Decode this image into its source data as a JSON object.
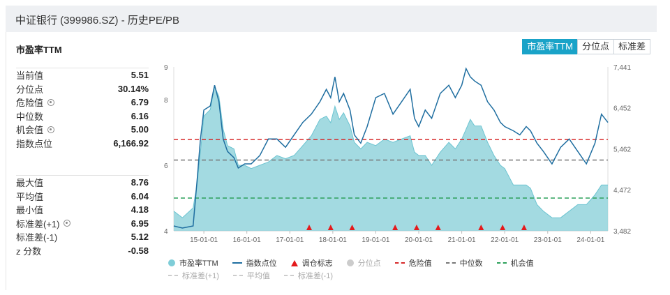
{
  "header": {
    "title": "中证银行 (399986.SZ) - 历史PE/PB"
  },
  "section": {
    "title": "市盈率TTM"
  },
  "tabs": [
    {
      "label": "市盈率TTM",
      "active": true
    },
    {
      "label": "分位点",
      "active": false
    },
    {
      "label": "标准差",
      "active": false
    }
  ],
  "stats_top": [
    {
      "label": "当前值",
      "value": "5.51",
      "gear": false
    },
    {
      "label": "分位点",
      "value": "30.14%",
      "gear": false
    },
    {
      "label": "危险值",
      "value": "6.79",
      "gear": true
    },
    {
      "label": "中位数",
      "value": "6.16",
      "gear": false
    },
    {
      "label": "机会值",
      "value": "5.00",
      "gear": true
    },
    {
      "label": "指数点位",
      "value": "6,166.92",
      "gear": false
    }
  ],
  "stats_bottom": [
    {
      "label": "最大值",
      "value": "8.76",
      "gear": false
    },
    {
      "label": "平均值",
      "value": "6.04",
      "gear": false
    },
    {
      "label": "最小值",
      "value": "4.18",
      "gear": false
    },
    {
      "label": "标准差(+1)",
      "value": "6.95",
      "gear": true
    },
    {
      "label": "标准差(-1)",
      "value": "5.12",
      "gear": false
    },
    {
      "label": "z 分数",
      "value": "-0.58",
      "gear": false
    }
  ],
  "legend": {
    "row1": [
      {
        "label": "市盈率TTM",
        "symbol": "dot",
        "color": "#7fcdd8",
        "muted": false
      },
      {
        "label": "指数点位",
        "symbol": "line",
        "color": "#1f6ea0",
        "muted": false
      },
      {
        "label": "调仓标志",
        "symbol": "triangle",
        "color": "#e41a1c",
        "muted": false
      },
      {
        "label": "分位点",
        "symbol": "dot",
        "color": "#cccccc",
        "muted": true
      },
      {
        "label": "危险值",
        "symbol": "dash",
        "color": "#d62728",
        "muted": false
      },
      {
        "label": "中位数",
        "symbol": "dash",
        "color": "#777777",
        "muted": false
      },
      {
        "label": "机会值",
        "symbol": "dash",
        "color": "#2ca05a",
        "muted": false
      }
    ],
    "row2": [
      {
        "label": "标准差(+1)",
        "symbol": "dash",
        "color": "#cccccc",
        "muted": true
      },
      {
        "label": "平均值",
        "symbol": "dash",
        "color": "#cccccc",
        "muted": true
      },
      {
        "label": "标准差(-1)",
        "symbol": "dash",
        "color": "#cccccc",
        "muted": true
      }
    ]
  },
  "chart_data": {
    "type": "area",
    "x_ticks": [
      "15-01-01",
      "16-01-01",
      "17-01-01",
      "18-01-01",
      "19-01-01",
      "20-01-01",
      "21-01-01",
      "22-01-01",
      "23-01-01",
      "24-01-01"
    ],
    "x_range": [
      2014.3,
      2024.4
    ],
    "y_left_ticks": [
      4,
      6,
      8,
      9
    ],
    "y_left_range": [
      4,
      9
    ],
    "y_right_ticks": [
      "3,482",
      "4,472",
      "5,462",
      "6,452",
      "7,441"
    ],
    "y_right_range": [
      3482,
      7441
    ],
    "reference_lines": {
      "danger": 6.79,
      "median": 6.16,
      "opportunity": 5.0,
      "colors": {
        "danger": "#d62728",
        "median": "#777777",
        "opportunity": "#2ca05a"
      }
    },
    "colors": {
      "pe_fill": "#93d3dc",
      "pe_stroke": "#6cc4d1",
      "index": "#1f6ea0",
      "marker": "#e41a1c"
    },
    "series": [
      {
        "name": "市盈率TTM",
        "x": [
          2014.3,
          2014.5,
          2014.75,
          2014.85,
          2014.92,
          2015.0,
          2015.15,
          2015.25,
          2015.35,
          2015.45,
          2015.55,
          2015.7,
          2015.8,
          2015.95,
          2016.1,
          2016.3,
          2016.5,
          2016.7,
          2016.9,
          2017.1,
          2017.3,
          2017.5,
          2017.7,
          2017.85,
          2017.95,
          2018.05,
          2018.15,
          2018.25,
          2018.4,
          2018.5,
          2018.65,
          2018.8,
          2019.0,
          2019.2,
          2019.4,
          2019.6,
          2019.8,
          2019.9,
          2020.0,
          2020.15,
          2020.3,
          2020.5,
          2020.7,
          2020.85,
          2021.0,
          2021.1,
          2021.2,
          2021.3,
          2021.45,
          2021.6,
          2021.75,
          2021.9,
          2022.0,
          2022.2,
          2022.35,
          2022.5,
          2022.6,
          2022.75,
          2022.9,
          2023.1,
          2023.3,
          2023.5,
          2023.7,
          2023.9,
          2024.1,
          2024.25,
          2024.4
        ],
        "y": [
          4.6,
          4.4,
          4.7,
          5.5,
          6.4,
          7.5,
          7.7,
          8.4,
          8.1,
          7.1,
          6.6,
          6.5,
          6.0,
          6.0,
          5.9,
          6.0,
          6.1,
          6.3,
          6.2,
          6.3,
          6.6,
          6.9,
          7.4,
          7.5,
          7.3,
          7.8,
          7.4,
          7.6,
          7.2,
          6.7,
          6.5,
          6.7,
          6.6,
          6.8,
          6.7,
          6.8,
          6.9,
          6.4,
          6.3,
          6.3,
          6.0,
          6.4,
          6.7,
          6.5,
          6.8,
          7.1,
          7.4,
          7.2,
          7.2,
          6.7,
          6.3,
          6.0,
          5.9,
          5.4,
          5.4,
          5.4,
          5.3,
          4.8,
          4.6,
          4.4,
          4.4,
          4.6,
          4.8,
          4.8,
          5.1,
          5.4,
          5.4
        ]
      },
      {
        "name": "指数点位",
        "x": [
          2014.3,
          2014.5,
          2014.75,
          2014.85,
          2014.92,
          2015.0,
          2015.15,
          2015.25,
          2015.35,
          2015.45,
          2015.55,
          2015.7,
          2015.8,
          2015.95,
          2016.1,
          2016.3,
          2016.5,
          2016.7,
          2016.9,
          2017.1,
          2017.3,
          2017.5,
          2017.7,
          2017.85,
          2017.95,
          2018.05,
          2018.15,
          2018.25,
          2018.4,
          2018.5,
          2018.65,
          2018.8,
          2019.0,
          2019.2,
          2019.4,
          2019.6,
          2019.8,
          2019.9,
          2020.0,
          2020.15,
          2020.3,
          2020.5,
          2020.7,
          2020.85,
          2021.0,
          2021.1,
          2021.2,
          2021.3,
          2021.45,
          2021.6,
          2021.75,
          2021.9,
          2022.0,
          2022.2,
          2022.35,
          2022.5,
          2022.6,
          2022.75,
          2022.9,
          2023.1,
          2023.3,
          2023.5,
          2023.7,
          2023.9,
          2024.1,
          2024.25,
          2024.4
        ],
        "y": [
          3600,
          3550,
          3600,
          4800,
          5700,
          6400,
          6500,
          7000,
          6600,
          5700,
          5400,
          5250,
          5000,
          5100,
          5100,
          5300,
          5700,
          5700,
          5500,
          5800,
          6100,
          6300,
          6600,
          6900,
          6700,
          7200,
          6600,
          6800,
          6400,
          5800,
          5600,
          6000,
          6700,
          6800,
          6300,
          6600,
          6900,
          6200,
          6000,
          6400,
          6200,
          6800,
          7000,
          6700,
          7000,
          7400,
          7200,
          7100,
          7000,
          6600,
          6400,
          6100,
          6000,
          5900,
          5800,
          6000,
          5900,
          5600,
          5400,
          5100,
          5500,
          5700,
          5400,
          5100,
          5600,
          6300,
          6100
        ]
      }
    ],
    "markers": [
      2017.45,
      2017.95,
      2018.45,
      2019.45,
      2019.95,
      2020.45,
      2021.45,
      2021.95,
      2022.45
    ]
  }
}
